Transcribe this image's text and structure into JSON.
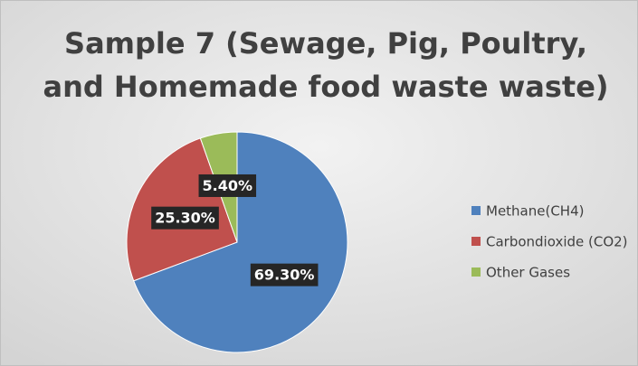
{
  "chart_data": {
    "type": "pie",
    "title": [
      "Sample 7 (Sewage, Pig, Poultry,",
      "and Homemade food waste waste)"
    ],
    "categories": [
      "Methane(CH4)",
      "Carbondioxide (CO2)",
      "Other Gases"
    ],
    "values": [
      69.3,
      25.3,
      5.4
    ],
    "value_labels": [
      "69.30%",
      "25.30%",
      "5.40%"
    ],
    "colors": [
      "#4f81bd",
      "#c0504d",
      "#9bbb59"
    ],
    "legend": "right"
  }
}
